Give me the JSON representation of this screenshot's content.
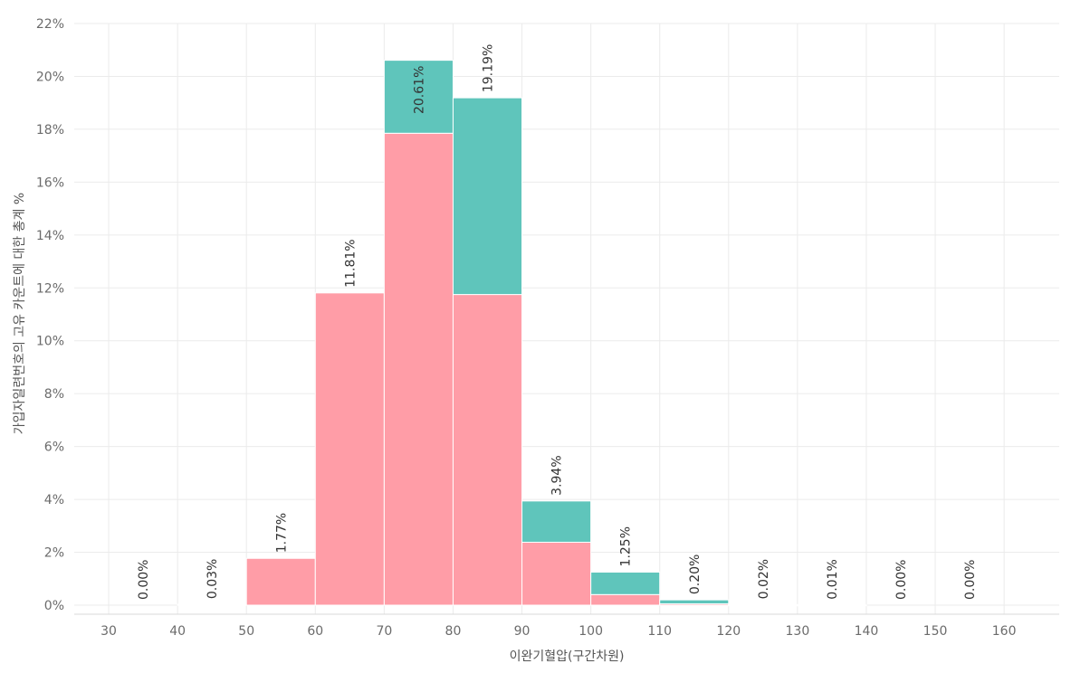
{
  "chart_data": {
    "type": "bar",
    "stacked": true,
    "xlabel": "이완기혈압(구간차원)",
    "ylabel": "가입자일련번호의 고유 카운트에 대한 총계 %",
    "ylim": [
      0,
      22
    ],
    "yticks": [
      0,
      2,
      4,
      6,
      8,
      10,
      12,
      14,
      16,
      18,
      20,
      22
    ],
    "ytick_labels": [
      "0%",
      "2%",
      "4%",
      "6%",
      "8%",
      "10%",
      "12%",
      "14%",
      "16%",
      "18%",
      "20%",
      "22%"
    ],
    "xlim": [
      25,
      168
    ],
    "xticks": [
      30,
      40,
      50,
      60,
      70,
      80,
      90,
      100,
      110,
      120,
      130,
      140,
      150,
      160
    ],
    "xtick_labels": [
      "30",
      "40",
      "50",
      "60",
      "70",
      "80",
      "90",
      "100",
      "110",
      "120",
      "130",
      "140",
      "150",
      "160"
    ],
    "grid": true,
    "bin_width": 10,
    "bins": [
      30,
      40,
      50,
      60,
      70,
      80,
      90,
      100,
      110,
      120,
      130,
      140,
      150
    ],
    "totals": [
      0.0,
      0.03,
      1.77,
      11.81,
      20.61,
      19.19,
      3.94,
      1.25,
      0.2,
      0.02,
      0.01,
      0.0,
      0.0
    ],
    "total_labels": [
      "0.00%",
      "0.03%",
      "1.77%",
      "11.81%",
      "20.61%",
      "19.19%",
      "3.94%",
      "1.25%",
      "0.20%",
      "0.02%",
      "0.01%",
      "0.00%",
      "0.00%"
    ],
    "series": [
      {
        "color": "#ff9da7",
        "values": [
          0.0,
          0.03,
          1.77,
          11.81,
          17.85,
          11.75,
          2.38,
          0.4,
          0.05,
          0.01,
          0.0,
          0.0,
          0.0
        ]
      },
      {
        "color": "#5fc5bb",
        "values": [
          0.0,
          0.0,
          0.0,
          0.0,
          2.76,
          7.44,
          1.56,
          0.85,
          0.15,
          0.01,
          0.01,
          0.0,
          0.0
        ]
      }
    ]
  }
}
